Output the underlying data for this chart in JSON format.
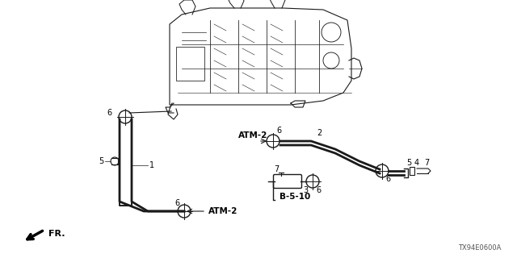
{
  "bg_color": "#ffffff",
  "diagram_ref": "TX94E0600A",
  "line_color": "#1a1a1a",
  "text_color": "#000000",
  "bold_labels": [
    "ATM-2",
    "ATM-2",
    "B-5-10"
  ],
  "labels": {
    "atm2_bottom": "ATM-2",
    "atm2_mid": "ATM-2",
    "b510": "B-5-10",
    "fr": "FR.",
    "n1": "1",
    "n2": "2",
    "n3": "3",
    "n4": "4",
    "n5a": "5",
    "n5b": "5",
    "n6a": "6",
    "n6b": "6",
    "n6c": "6",
    "n6d": "6",
    "n6e": "6",
    "n7a": "7",
    "n7b": "7"
  },
  "figsize": [
    6.4,
    3.2
  ],
  "dpi": 100
}
